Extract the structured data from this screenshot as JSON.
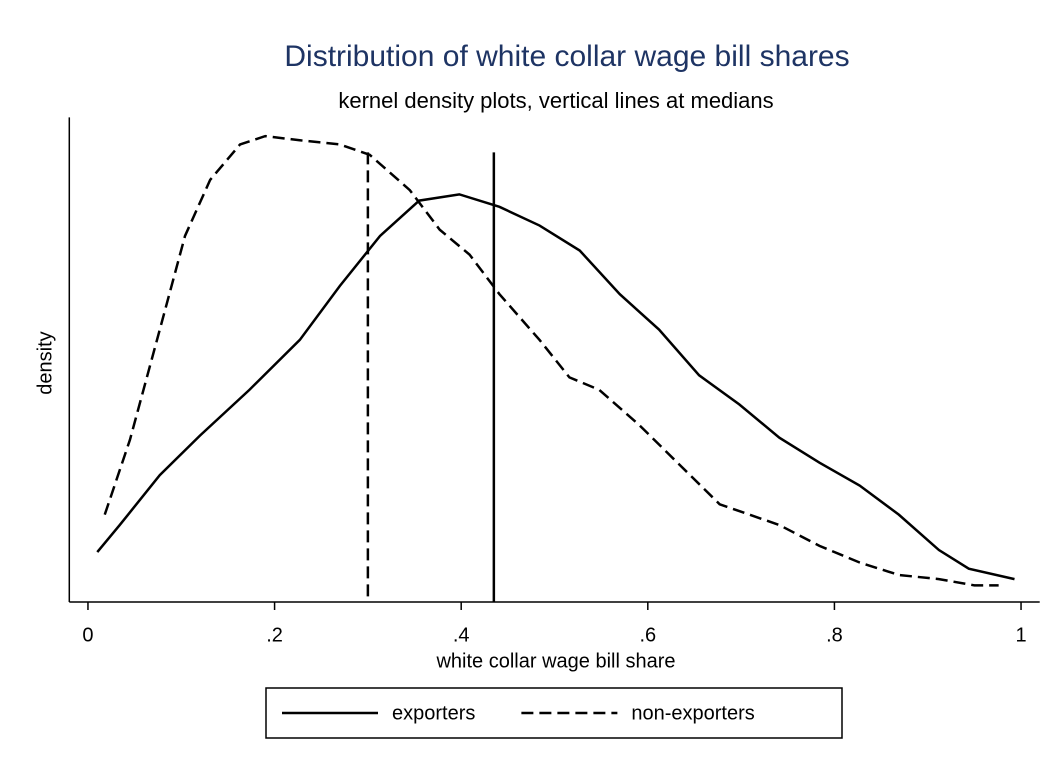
{
  "chart_data": {
    "type": "line",
    "title": "Distribution of white collar wage bill shares",
    "subtitle": "kernel density plots, vertical lines at medians",
    "x_label": "white collar wage bill share",
    "y_label": "density",
    "xlim": [
      -0.02,
      1.02
    ],
    "xticks": [
      0,
      {
        "value": 0.2,
        "label": ".2"
      },
      {
        "value": 0.4,
        "label": ".4"
      },
      {
        "value": 0.6,
        "label": ".6"
      },
      {
        "value": 0.8,
        "label": ".8"
      },
      1
    ],
    "ylim": [
      0,
      2.33
    ],
    "series": [
      {
        "name": "exporters",
        "color": "#000000",
        "dash": "solid",
        "x": [
          0.01,
          0.034,
          0.077,
          0.12,
          0.173,
          0.227,
          0.27,
          0.313,
          0.355,
          0.398,
          0.441,
          0.484,
          0.527,
          0.57,
          0.612,
          0.655,
          0.698,
          0.741,
          0.784,
          0.827,
          0.869,
          0.912,
          0.944,
          0.993
        ],
        "values": [
          0.24,
          0.37,
          0.61,
          0.8,
          1.02,
          1.26,
          1.52,
          1.76,
          1.93,
          1.96,
          1.9,
          1.81,
          1.69,
          1.48,
          1.31,
          1.09,
          0.95,
          0.79,
          0.67,
          0.56,
          0.42,
          0.25,
          0.16,
          0.11
        ],
        "median": 0.435
      },
      {
        "name": "non-exporters",
        "color": "#000000",
        "dash": "dashed",
        "x": [
          0.018,
          0.045,
          0.077,
          0.104,
          0.131,
          0.163,
          0.19,
          0.227,
          0.27,
          0.302,
          0.345,
          0.377,
          0.409,
          0.441,
          0.484,
          0.516,
          0.548,
          0.591,
          0.634,
          0.677,
          0.709,
          0.741,
          0.784,
          0.827,
          0.869,
          0.912,
          0.95,
          0.976
        ],
        "values": [
          0.42,
          0.78,
          1.31,
          1.76,
          2.03,
          2.2,
          2.24,
          2.22,
          2.2,
          2.15,
          1.98,
          1.79,
          1.67,
          1.48,
          1.26,
          1.08,
          1.02,
          0.85,
          0.66,
          0.47,
          0.42,
          0.37,
          0.27,
          0.19,
          0.13,
          0.11,
          0.08,
          0.08
        ],
        "median": 0.3
      }
    ],
    "legend": "bottom"
  }
}
